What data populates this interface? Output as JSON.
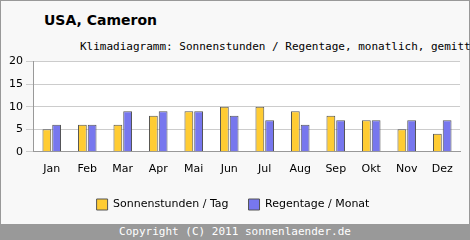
{
  "chart_data": {
    "type": "bar",
    "title": "USA, Cameron",
    "subtitle": "Klimadiagramm: Sonnenstunden / Regentage, monatlich, gemittelt",
    "categories": [
      "Jan",
      "Feb",
      "Mar",
      "Apr",
      "Mai",
      "Jun",
      "Jul",
      "Aug",
      "Sep",
      "Okt",
      "Nov",
      "Dez"
    ],
    "series": [
      {
        "name": "Sonnenstunden / Tag",
        "color": "#ffcc33",
        "values": [
          5,
          6,
          6,
          8,
          9,
          10,
          10,
          9,
          8,
          7,
          5,
          4
        ]
      },
      {
        "name": "Regentage / Monat",
        "color": "#7777ee",
        "values": [
          6,
          6,
          9,
          9,
          9,
          8,
          7,
          6,
          7,
          7,
          7,
          7
        ]
      }
    ],
    "ylim": [
      0,
      20
    ],
    "yticks": [
      0,
      5,
      10,
      15,
      20
    ],
    "grid": true,
    "legend": "bottom",
    "annotations": [
      "Copyright (C) 2011 sonnenlaender.de"
    ]
  }
}
